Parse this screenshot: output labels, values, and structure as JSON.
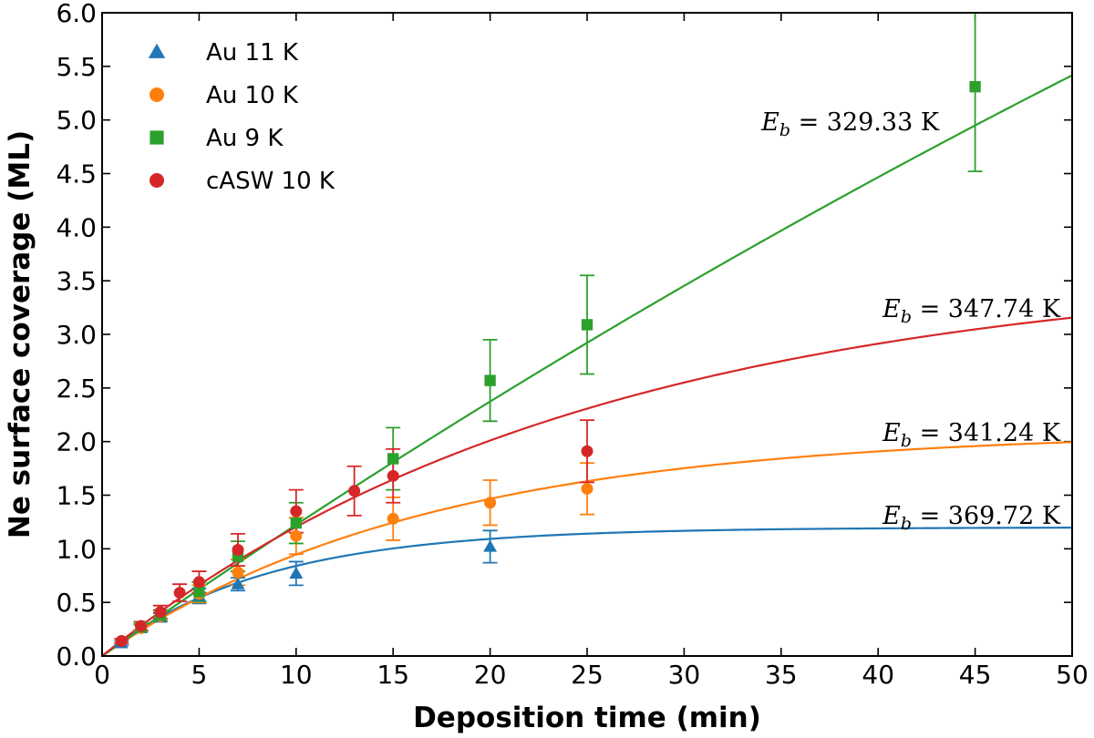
{
  "chart_data": {
    "type": "scatter",
    "xlabel": "Deposition time (min)",
    "ylabel": "Ne surface coverage (ML)",
    "xlim": [
      0,
      50
    ],
    "ylim": [
      0,
      6
    ],
    "xticks": [
      0,
      5,
      10,
      15,
      20,
      25,
      30,
      35,
      40,
      45,
      50
    ],
    "yticks": [
      0.0,
      0.5,
      1.0,
      1.5,
      2.0,
      2.5,
      3.0,
      3.5,
      4.0,
      4.5,
      5.0,
      5.5,
      6.0
    ],
    "xtick_labels": [
      "0",
      "5",
      "10",
      "15",
      "20",
      "25",
      "30",
      "35",
      "40",
      "45",
      "50"
    ],
    "ytick_labels": [
      "0.0",
      "0.5",
      "1.0",
      "1.5",
      "2.0",
      "2.5",
      "3.0",
      "3.5",
      "4.0",
      "4.5",
      "5.0",
      "5.5",
      "6.0"
    ],
    "legend_position": "top-left",
    "series": [
      {
        "name": "Au 11 K",
        "color": "#1f77b4",
        "marker": "triangle",
        "points": [
          {
            "x": 1,
            "y": 0.12,
            "err": 0.02
          },
          {
            "x": 2,
            "y": 0.26,
            "err": 0.03
          },
          {
            "x": 3,
            "y": 0.36,
            "err": 0.04
          },
          {
            "x": 5,
            "y": 0.56,
            "err": 0.07
          },
          {
            "x": 7,
            "y": 0.67,
            "err": 0.06
          },
          {
            "x": 10,
            "y": 0.77,
            "err": 0.11
          },
          {
            "x": 20,
            "y": 1.02,
            "err": 0.15
          }
        ],
        "fit": {
          "A": 1.2,
          "tau": 8.3
        },
        "annotation_sym": "E",
        "annotation_sub": "b",
        "annotation_value": " = 369.72 K"
      },
      {
        "name": "Au 10 K",
        "color": "#ff7f0e",
        "marker": "circle",
        "points": [
          {
            "x": 2,
            "y": 0.26,
            "err": 0.03
          },
          {
            "x": 3,
            "y": 0.37,
            "err": 0.05
          },
          {
            "x": 5,
            "y": 0.58,
            "err": 0.08
          },
          {
            "x": 7,
            "y": 0.78,
            "err": 0.12
          },
          {
            "x": 10,
            "y": 1.12,
            "err": 0.17
          },
          {
            "x": 15,
            "y": 1.28,
            "err": 0.2
          },
          {
            "x": 20,
            "y": 1.43,
            "err": 0.21
          },
          {
            "x": 25,
            "y": 1.56,
            "err": 0.24
          }
        ],
        "fit": {
          "A": 2.1,
          "tau": 16.7
        },
        "annotation_sym": "E",
        "annotation_sub": "b",
        "annotation_value": " = 341.24 K"
      },
      {
        "name": "Au 9 K",
        "color": "#2ca02c",
        "marker": "square",
        "points": [
          {
            "x": 2,
            "y": 0.27,
            "err": 0.03
          },
          {
            "x": 3,
            "y": 0.38,
            "err": 0.05
          },
          {
            "x": 5,
            "y": 0.6,
            "err": 0.09
          },
          {
            "x": 7,
            "y": 0.93,
            "err": 0.14
          },
          {
            "x": 10,
            "y": 1.24,
            "err": 0.19
          },
          {
            "x": 15,
            "y": 1.84,
            "err": 0.29
          },
          {
            "x": 20,
            "y": 2.57,
            "err": 0.38
          },
          {
            "x": 25,
            "y": 3.09,
            "err": 0.46
          },
          {
            "x": 45,
            "y": 5.31,
            "err": 0.79
          }
        ],
        "fit": {
          "A": 20.0,
          "tau": 158.3
        },
        "annotation_sym": "E",
        "annotation_sub": "b",
        "annotation_value": " = 329.33 K"
      },
      {
        "name": "cASW 10 K",
        "color": "#d62728",
        "marker": "circle",
        "points": [
          {
            "x": 1,
            "y": 0.14,
            "err": 0.02
          },
          {
            "x": 2,
            "y": 0.28,
            "err": 0.04
          },
          {
            "x": 3,
            "y": 0.41,
            "err": 0.06
          },
          {
            "x": 4,
            "y": 0.59,
            "err": 0.08
          },
          {
            "x": 5,
            "y": 0.69,
            "err": 0.1
          },
          {
            "x": 7,
            "y": 0.99,
            "err": 0.15
          },
          {
            "x": 10,
            "y": 1.35,
            "err": 0.2
          },
          {
            "x": 13,
            "y": 1.54,
            "err": 0.23
          },
          {
            "x": 15,
            "y": 1.68,
            "err": 0.25
          },
          {
            "x": 25,
            "y": 1.91,
            "err": 0.29
          }
        ],
        "fit": {
          "A": 3.65,
          "tau": 25.0
        },
        "annotation_sym": "E",
        "annotation_sub": "b",
        "annotation_value": " = 347.74 K"
      }
    ]
  }
}
